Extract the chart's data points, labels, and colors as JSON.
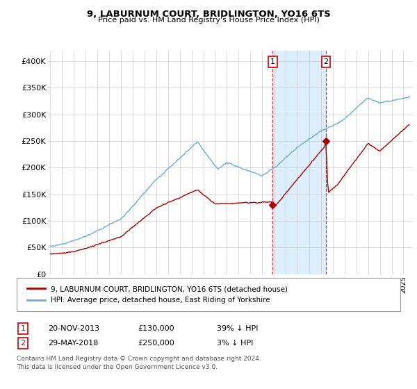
{
  "title": "9, LABURNUM COURT, BRIDLINGTON, YO16 6TS",
  "subtitle": "Price paid vs. HM Land Registry's House Price Index (HPI)",
  "ylabel_ticks": [
    "£0",
    "£50K",
    "£100K",
    "£150K",
    "£200K",
    "£250K",
    "£300K",
    "£350K",
    "£400K"
  ],
  "ylim": [
    0,
    420000
  ],
  "xlim_start": 1994.8,
  "xlim_end": 2025.8,
  "sale1_date": 2013.9,
  "sale1_price": 130000,
  "sale2_date": 2018.42,
  "sale2_price": 250000,
  "shade_color": "#ddeeff",
  "line_color_hpi": "#6aaed6",
  "line_color_property": "#aa0000",
  "legend_property": "9, LABURNUM COURT, BRIDLINGTON, YO16 6TS (detached house)",
  "legend_hpi": "HPI: Average price, detached house, East Riding of Yorkshire",
  "table_rows": [
    {
      "label": "1",
      "date": "20-NOV-2013",
      "price": "£130,000",
      "hpi": "39% ↓ HPI"
    },
    {
      "label": "2",
      "date": "29-MAY-2018",
      "price": "£250,000",
      "hpi": "3% ↓ HPI"
    }
  ],
  "footnote": "Contains HM Land Registry data © Crown copyright and database right 2024.\nThis data is licensed under the Open Government Licence v3.0.",
  "bg_color": "#ffffff",
  "grid_color": "#cccccc",
  "label_box_color": "#cc0000"
}
